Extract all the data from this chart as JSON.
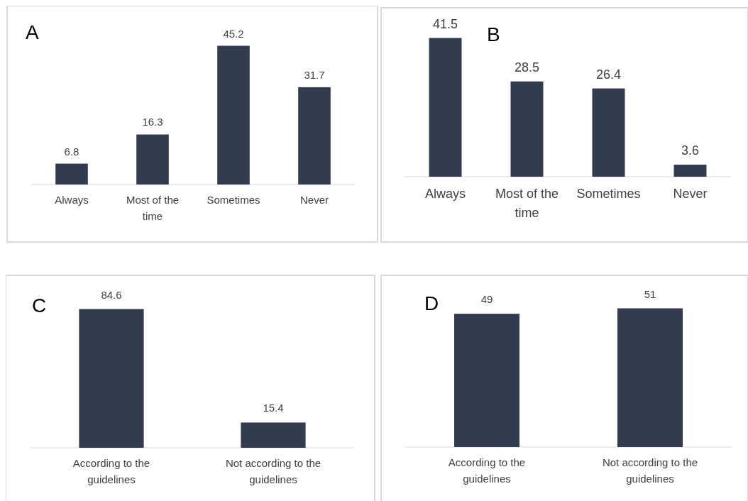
{
  "chart_data": [
    {
      "type": "bar",
      "title": "A",
      "categories": [
        "Always",
        "Most of the time",
        "Sometimes",
        "Never"
      ],
      "values": [
        6.8,
        16.3,
        45.2,
        31.7
      ],
      "color": "#323c4f",
      "data_labels": true
    },
    {
      "type": "bar",
      "title": "B",
      "categories": [
        "Always",
        "Most of the time",
        "Sometimes",
        "Never"
      ],
      "values": [
        41.5,
        28.5,
        26.4,
        3.6
      ],
      "color": "#323c4f",
      "data_labels": true
    },
    {
      "type": "bar",
      "title": "C",
      "categories": [
        "According to the guidelines",
        "Not according to the guidelines"
      ],
      "values": [
        84.6,
        15.4
      ],
      "color": "#323c4f",
      "data_labels": true
    },
    {
      "type": "bar",
      "title": "D",
      "categories": [
        "According to the guidelines",
        "Not according to the guidelines"
      ],
      "values": [
        49,
        51
      ],
      "color": "#323c4f",
      "data_labels": true
    }
  ]
}
